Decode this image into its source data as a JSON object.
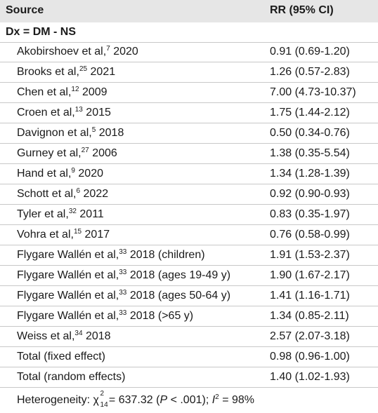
{
  "header": {
    "source": "Source",
    "rr": "RR (95% CI)"
  },
  "group_label": "Dx = DM - NS",
  "studies": [
    {
      "author": "Akobirshoev et al,",
      "ref": "7",
      "year": "2020",
      "rr": "0.91 (0.69-1.20)"
    },
    {
      "author": "Brooks et al,",
      "ref": "25",
      "year": "2021",
      "rr": "1.26 (0.57-2.83)"
    },
    {
      "author": "Chen et al,",
      "ref": "12",
      "year": "2009",
      "rr": "7.00 (4.73-10.37)"
    },
    {
      "author": "Croen et al,",
      "ref": "13",
      "year": "2015",
      "rr": "1.75 (1.44-2.12)"
    },
    {
      "author": "Davignon et al,",
      "ref": "5",
      "year": "2018",
      "rr": "0.50 (0.34-0.76)"
    },
    {
      "author": "Gurney et al,",
      "ref": "27",
      "year": "2006",
      "rr": "1.38 (0.35-5.54)"
    },
    {
      "author": "Hand et al,",
      "ref": "9",
      "year": "2020",
      "rr": "1.34 (1.28-1.39)"
    },
    {
      "author": "Schott et al,",
      "ref": "6",
      "year": "2022",
      "rr": "0.92 (0.90-0.93)"
    },
    {
      "author": "Tyler et al,",
      "ref": "32",
      "year": "2011",
      "rr": "0.83 (0.35-1.97)"
    },
    {
      "author": "Vohra et al,",
      "ref": "15",
      "year": "2017",
      "rr": "0.76 (0.58-0.99)"
    },
    {
      "author": "Flygare Wallén et al,",
      "ref": "33",
      "year": "2018 (children)",
      "rr": "1.91 (1.53-2.37)"
    },
    {
      "author": "Flygare Wallén et al,",
      "ref": "33",
      "year": "2018 (ages 19-49 y)",
      "rr": "1.90 (1.67-2.17)"
    },
    {
      "author": "Flygare Wallén et al,",
      "ref": "33",
      "year": "2018 (ages 50-64 y)",
      "rr": "1.41 (1.16-1.71)"
    },
    {
      "author": "Flygare Wallén et al,",
      "ref": "33",
      "year": "2018 (>65 y)",
      "rr": "1.34 (0.85-2.11)"
    },
    {
      "author": "Weiss et al,",
      "ref": "34",
      "year": "2018",
      "rr": "2.57 (2.07-3.18)"
    }
  ],
  "totals": [
    {
      "label": "Total (fixed effect)",
      "rr": "0.98 (0.96-1.00)"
    },
    {
      "label": "Total (random effects)",
      "rr": "1.40 (1.02-1.93)"
    }
  ],
  "heterogeneity": {
    "prefix": "Heterogeneity:",
    "chi_symbol": "χ",
    "chi_sup": "2",
    "chi_sub": "14",
    "chi_value": "= 637.32",
    "p_open": "(",
    "p_symbol": "P",
    "p_value": "< .001);",
    "i_symbol": "I",
    "i_sup": "2",
    "i_value": "= 98%"
  }
}
